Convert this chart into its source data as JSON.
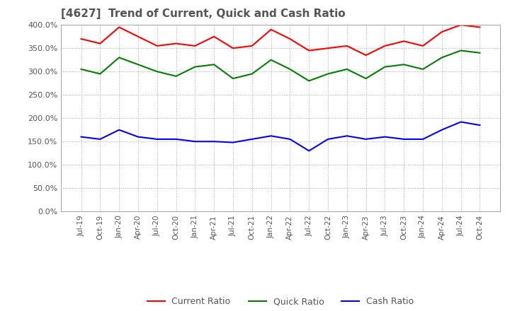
{
  "title": "[4627]  Trend of Current, Quick and Cash Ratio",
  "title_color": "#555555",
  "background_color": "#ffffff",
  "plot_background_color": "#ffffff",
  "grid_color": "#aaaaaa",
  "x_labels": [
    "Jul-19",
    "Oct-19",
    "Jan-20",
    "Apr-20",
    "Jul-20",
    "Oct-20",
    "Jan-21",
    "Apr-21",
    "Jul-21",
    "Oct-21",
    "Jan-22",
    "Apr-22",
    "Jul-22",
    "Oct-22",
    "Jan-23",
    "Apr-23",
    "Jul-23",
    "Oct-23",
    "Jan-24",
    "Apr-24",
    "Jul-24",
    "Oct-24"
  ],
  "current_ratio": [
    370,
    360,
    395,
    375,
    355,
    360,
    355,
    375,
    350,
    355,
    390,
    370,
    345,
    350,
    355,
    335,
    355,
    365,
    355,
    385,
    400,
    395
  ],
  "quick_ratio": [
    305,
    295,
    330,
    315,
    300,
    290,
    310,
    315,
    285,
    295,
    325,
    305,
    280,
    295,
    305,
    285,
    310,
    315,
    305,
    330,
    345,
    340
  ],
  "cash_ratio": [
    160,
    155,
    175,
    160,
    155,
    155,
    150,
    150,
    148,
    155,
    162,
    155,
    130,
    155,
    162,
    155,
    160,
    155,
    155,
    175,
    192,
    185
  ],
  "current_color": "#ff0000",
  "quick_color": "#008000",
  "cash_color": "#0000ff",
  "ylim": [
    0,
    400
  ],
  "yticks": [
    0,
    50,
    100,
    150,
    200,
    250,
    300,
    350,
    400
  ],
  "legend_labels": [
    "Current Ratio",
    "Quick Ratio",
    "Cash Ratio"
  ]
}
